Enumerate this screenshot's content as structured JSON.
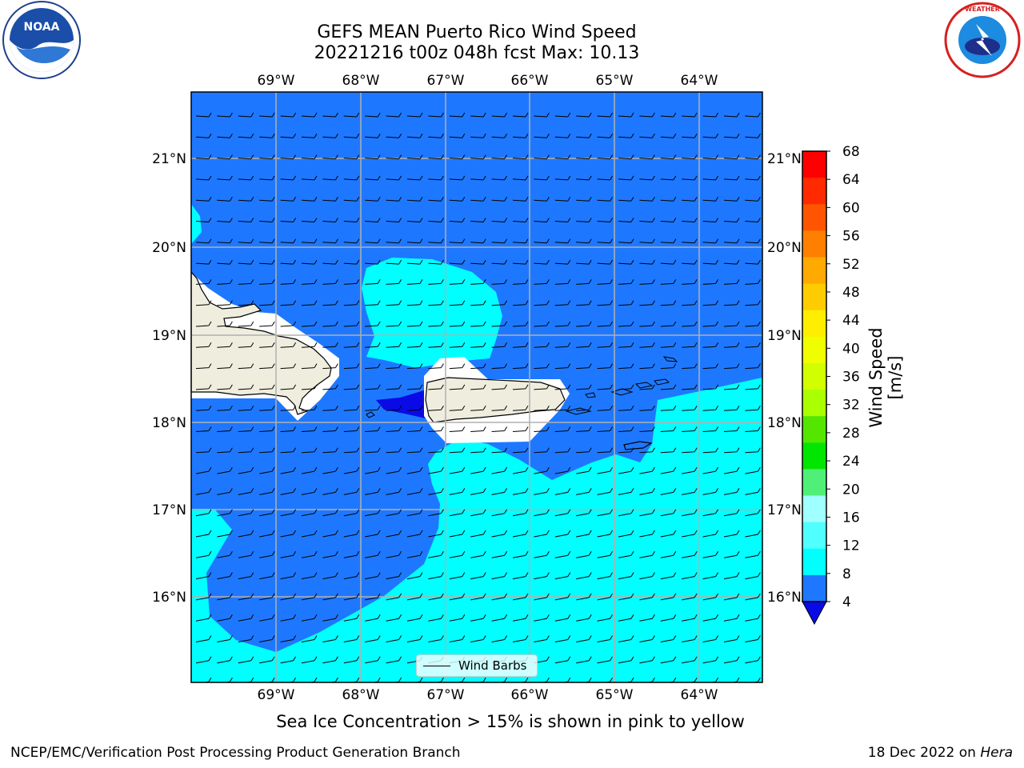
{
  "header": {
    "title_line1": "GEFS MEAN Puerto Rico Wind Speed",
    "title_line2": "20221216 t00z 048h fcst   Max: 10.13"
  },
  "logos": {
    "left": "NOAA",
    "right": "NATIONAL WEATHER SERVICE"
  },
  "map": {
    "lon_ticks": [
      "69°W",
      "68°W",
      "67°W",
      "66°W",
      "65°W",
      "64°W"
    ],
    "lat_ticks": [
      "21°N",
      "20°N",
      "19°N",
      "18°N",
      "17°N",
      "16°N"
    ],
    "legend_label": "Wind Barbs",
    "colors": {
      "band_4_8": "#1e78ff",
      "band_8_12": "#00ffff",
      "below_4": "#0a0ae6",
      "land": "#efedde"
    }
  },
  "colorbar": {
    "label": "Wind Speed [m/s]",
    "ticks": [
      "68",
      "64",
      "60",
      "56",
      "52",
      "48",
      "44",
      "40",
      "36",
      "32",
      "28",
      "24",
      "20",
      "16",
      "12",
      "8",
      "4"
    ],
    "colors": [
      "#ff0000",
      "#ff2a00",
      "#ff5500",
      "#ff8000",
      "#ffaa00",
      "#ffcc00",
      "#ffee00",
      "#f0ff00",
      "#d2ff00",
      "#aaff00",
      "#55e600",
      "#00e600",
      "#50f078",
      "#a0ffff",
      "#50ffff",
      "#00ffff",
      "#1e78ff"
    ]
  },
  "footer": {
    "note": "Sea Ice Concentration > 15% is shown in pink to yellow",
    "credit": "NCEP/EMC/Verification Post Processing Product Generation Branch",
    "date_prefix": "18 Dec 2022 on ",
    "machine": "Hera"
  }
}
